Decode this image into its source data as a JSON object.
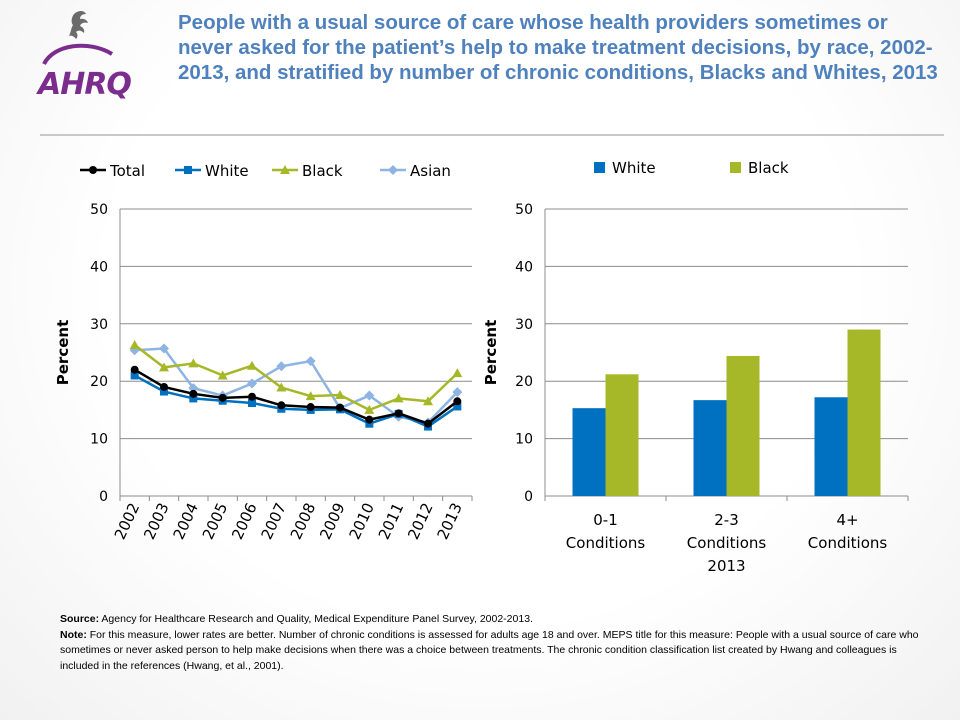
{
  "title": "People with a usual source of care whose health providers sometimes or never asked for the patient’s help to make treatment decisions, by race, 2002-2013, and stratified by number of chronic conditions, Blacks and Whites, 2013",
  "colors": {
    "title": "#4f81bd",
    "total": "#000000",
    "white": "#0070c0",
    "black": "#a6b727",
    "asian": "#8db4e2"
  },
  "chart_data": [
    {
      "type": "line",
      "ylabel": "Percent",
      "ylim": [
        0,
        50
      ],
      "yticks": [
        0,
        10,
        20,
        30,
        40,
        50
      ],
      "grid": true,
      "legend": "top",
      "x": [
        "2002",
        "2003",
        "2004",
        "2005",
        "2006",
        "2007",
        "2008",
        "2009",
        "2010",
        "2011",
        "2012",
        "2013"
      ],
      "series": [
        {
          "name": "Total",
          "color": "#000000",
          "marker": "circle",
          "values": [
            22.0,
            19.0,
            17.8,
            17.1,
            17.3,
            15.8,
            15.5,
            15.4,
            13.3,
            14.4,
            12.6,
            16.5
          ]
        },
        {
          "name": "White",
          "color": "#0070c0",
          "marker": "square",
          "values": [
            21.0,
            18.2,
            17.0,
            16.6,
            16.2,
            15.2,
            15.0,
            15.1,
            12.6,
            14.3,
            12.1,
            15.6
          ]
        },
        {
          "name": "Black",
          "color": "#a6b727",
          "marker": "triangle",
          "values": [
            26.3,
            22.4,
            23.1,
            21.0,
            22.7,
            18.9,
            17.4,
            17.6,
            15.0,
            17.0,
            16.5,
            21.4
          ]
        },
        {
          "name": "Asian",
          "color": "#8db4e2",
          "marker": "diamond",
          "values": [
            25.4,
            25.7,
            18.8,
            17.5,
            19.6,
            22.6,
            23.5,
            15.3,
            17.5,
            13.8,
            12.8,
            18.1
          ]
        }
      ]
    },
    {
      "type": "bar",
      "ylabel": "Percent",
      "xlabel": "2013",
      "ylim": [
        0,
        50
      ],
      "yticks": [
        0,
        10,
        20,
        30,
        40,
        50
      ],
      "grid": true,
      "legend": "top",
      "categories": [
        [
          "0-1",
          "Conditions"
        ],
        [
          "2-3",
          "Conditions"
        ],
        [
          "4+",
          "Conditions"
        ]
      ],
      "series": [
        {
          "name": "White",
          "color": "#0070c0",
          "values": [
            15.3,
            16.7,
            17.2
          ]
        },
        {
          "name": "Black",
          "color": "#a6b727",
          "values": [
            21.2,
            24.4,
            29.0
          ]
        }
      ]
    }
  ],
  "footnote": {
    "source_label": "Source:",
    "source_text": " Agency for Healthcare Research and Quality, Medical Expenditure Panel Survey, 2002-2013.",
    "note_label": "Note:",
    "note_text": " For this measure, lower rates are better. Number of chronic conditions is assessed for adults age 18 and over. MEPS title for this measure: People with a usual source of care who sometimes or never asked person to help make decisions when there was a choice between treatments. The chronic condition classification list created by Hwang and colleagues is included in the references (Hwang,  et al., 2001)."
  }
}
